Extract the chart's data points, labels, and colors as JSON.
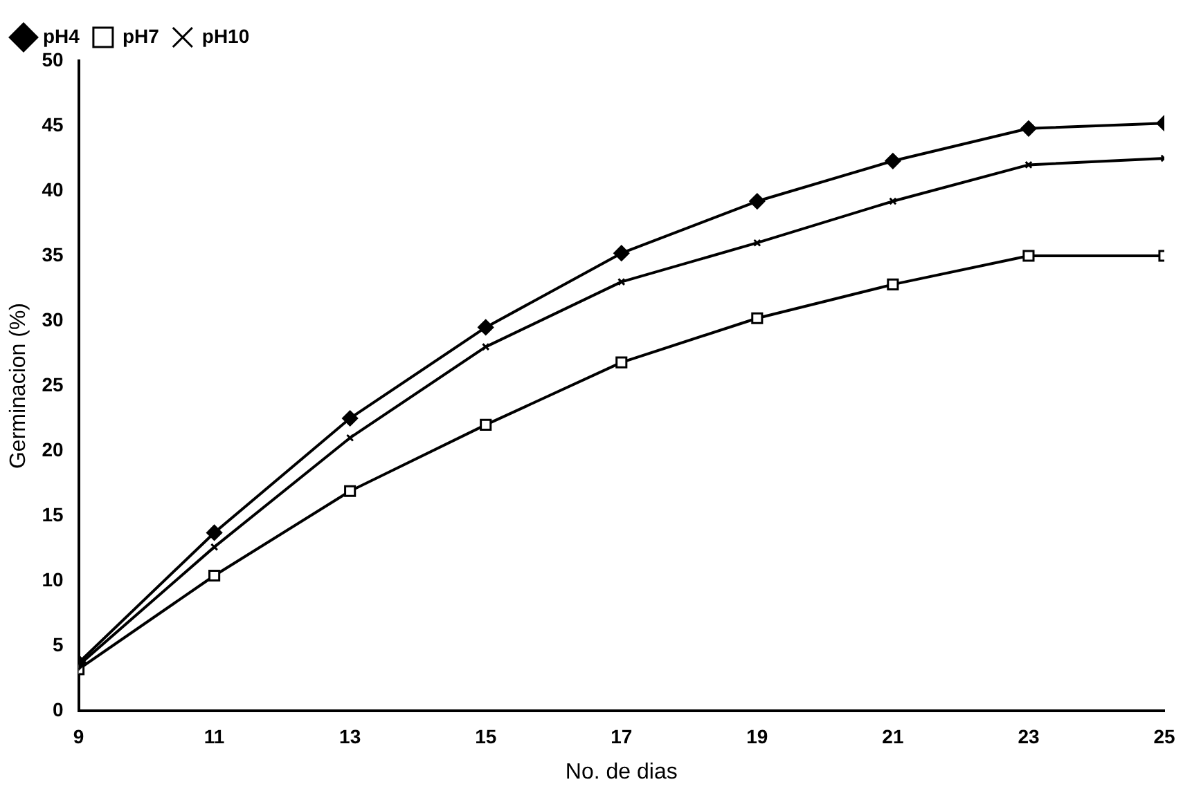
{
  "chart_data": {
    "type": "line",
    "xlabel": "No. de dias",
    "ylabel": "Germinacion (%)",
    "x": [
      9,
      11,
      13,
      15,
      17,
      19,
      21,
      23,
      25
    ],
    "series": [
      {
        "name": "pH4",
        "color": "#000000",
        "marker": "diamond",
        "values": [
          3.7,
          13.7,
          22.5,
          29.5,
          35.2,
          39.2,
          42.3,
          44.8,
          45.2
        ]
      },
      {
        "name": "pH7",
        "color": "#000000",
        "marker": "square",
        "values": [
          3.2,
          10.4,
          16.9,
          22,
          26.8,
          30.2,
          32.8,
          35,
          35
        ]
      },
      {
        "name": "pH10",
        "color": "#000000",
        "marker": "cross",
        "values": [
          3.5,
          12.6,
          21,
          28,
          33,
          36,
          39.2,
          42,
          42.5
        ]
      }
    ],
    "xlim": [
      9,
      25
    ],
    "xticks": [
      9,
      11,
      13,
      15,
      17,
      19,
      21,
      23,
      25
    ],
    "ylim": [
      0,
      50
    ],
    "yticks": [
      0,
      5,
      10,
      15,
      20,
      25,
      30,
      35,
      40,
      45,
      50
    ],
    "grid": false,
    "legend": "top left",
    "line_style": "solid"
  }
}
